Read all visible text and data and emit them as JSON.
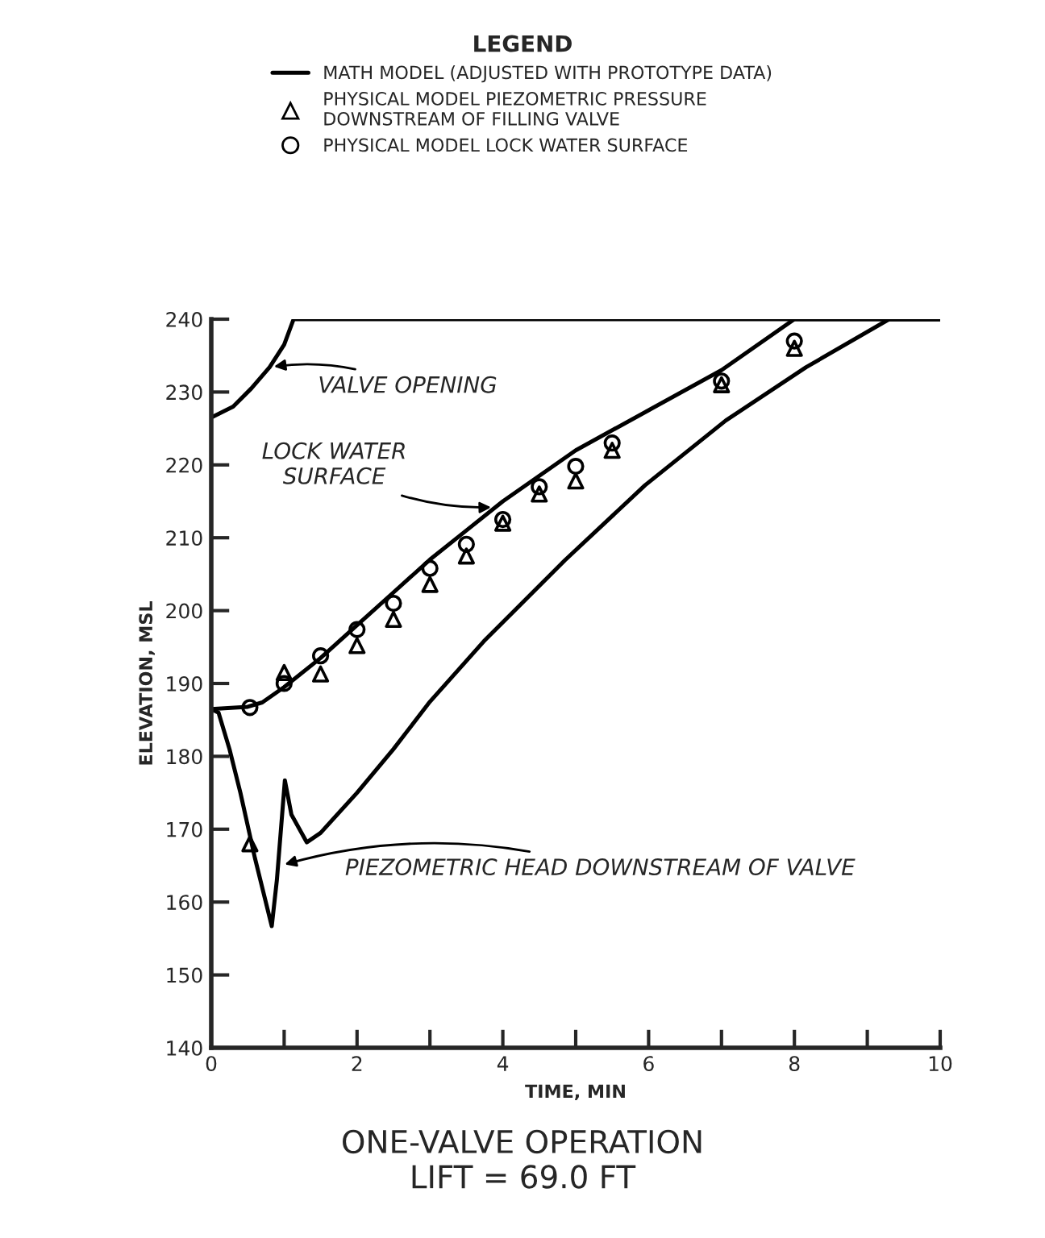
{
  "chart_data": {
    "type": "line",
    "title": "ONE-VALVE OPERATION\nLIFT = 69.0 FT",
    "xlabel": "TIME, MIN",
    "ylabel": "ELEVATION, MSL",
    "legend_title": "LEGEND",
    "legend": "top",
    "grid": false,
    "xlim": [
      0,
      10
    ],
    "ylim": [
      140,
      240
    ],
    "xticks": [
      0,
      {
        "value": 1,
        "label": null
      },
      2,
      {
        "value": 3,
        "label": null
      },
      4,
      {
        "value": 5,
        "label": null
      },
      6,
      {
        "value": 7,
        "label": null
      },
      8,
      {
        "value": 9,
        "label": null
      },
      10
    ],
    "yticks": [
      140,
      150,
      160,
      170,
      180,
      190,
      200,
      210,
      220,
      230,
      240
    ],
    "series": [
      {
        "name": "MATH MODEL (ADJUSTED WITH PROTOTYPE DATA)",
        "color": "#000000",
        "marker": "none",
        "line_style": "solid",
        "x": [
          0,
          0.3,
          0.55,
          0.8,
          1.0,
          1.13,
          10
        ],
        "values": [
          226.5,
          228,
          230.5,
          233.4,
          236.5,
          240,
          240
        ]
      },
      {
        "name": "PHYSICAL MODEL PIEZOMETRIC PRESSURE\nDOWNSTREAM OF FILLING VALVE",
        "type": "scatter",
        "color": "#000000",
        "marker": "triangle",
        "x": [
          0.53,
          1.0,
          1.5,
          2.0,
          2.5,
          3.0,
          3.5,
          4.0,
          4.5,
          5.0,
          5.5,
          7.0,
          8.0
        ],
        "values": [
          168,
          191.5,
          191.3,
          195.2,
          198.8,
          203.6,
          207.5,
          212,
          216,
          217.8,
          222,
          231,
          236
        ]
      },
      {
        "name": "PHYSICAL MODEL LOCK WATER SURFACE",
        "type": "scatter",
        "color": "#000000",
        "marker": "circle",
        "x": [
          0.53,
          1.0,
          1.5,
          2.0,
          2.5,
          3.0,
          3.5,
          4.0,
          4.5,
          5.0,
          5.5,
          7.0,
          8.0
        ],
        "values": [
          186.7,
          190,
          193.8,
          197.4,
          201,
          205.8,
          209.1,
          212.5,
          217,
          219.8,
          223,
          231.5,
          237
        ]
      },
      {
        "color": "#000000",
        "marker": "none",
        "line_style": "solid",
        "x": [
          0,
          0.5,
          0.7,
          1.0,
          1.5,
          2.0,
          2.5,
          3.0,
          3.5,
          4.0,
          5.0,
          6.0,
          7.0,
          8.0,
          10
        ],
        "values": [
          186.5,
          186.8,
          187.4,
          189.5,
          193.5,
          198,
          202.5,
          207,
          211,
          215,
          222,
          227.5,
          233,
          240,
          240
        ]
      },
      {
        "color": "#000000",
        "marker": "none",
        "line_style": "solid",
        "x": [
          0,
          0.1,
          0.25,
          0.4,
          0.6,
          0.83,
          0.9,
          1.01,
          1.1,
          1.31,
          1.5,
          2.0,
          2.5,
          3.0,
          3.74,
          4.85,
          5.95,
          7.06,
          8.16,
          9.3,
          10
        ],
        "values": [
          186.5,
          186,
          181,
          175,
          166,
          156.7,
          163,
          176.7,
          172,
          168.2,
          169.5,
          175,
          181,
          187.5,
          195.8,
          206.9,
          217.2,
          226.1,
          233.4,
          240,
          240
        ]
      }
    ],
    "annotations": [
      {
        "text": "VALVE OPENING",
        "x": 0.8,
        "y": 233.4
      },
      {
        "text": "LOCK WATER\nSURFACE",
        "x": 3.9,
        "y": 214.2
      },
      {
        "text": "PIEZOMETRIC HEAD DOWNSTREAM OF VALVE",
        "x": 0.95,
        "y": 165
      }
    ]
  }
}
